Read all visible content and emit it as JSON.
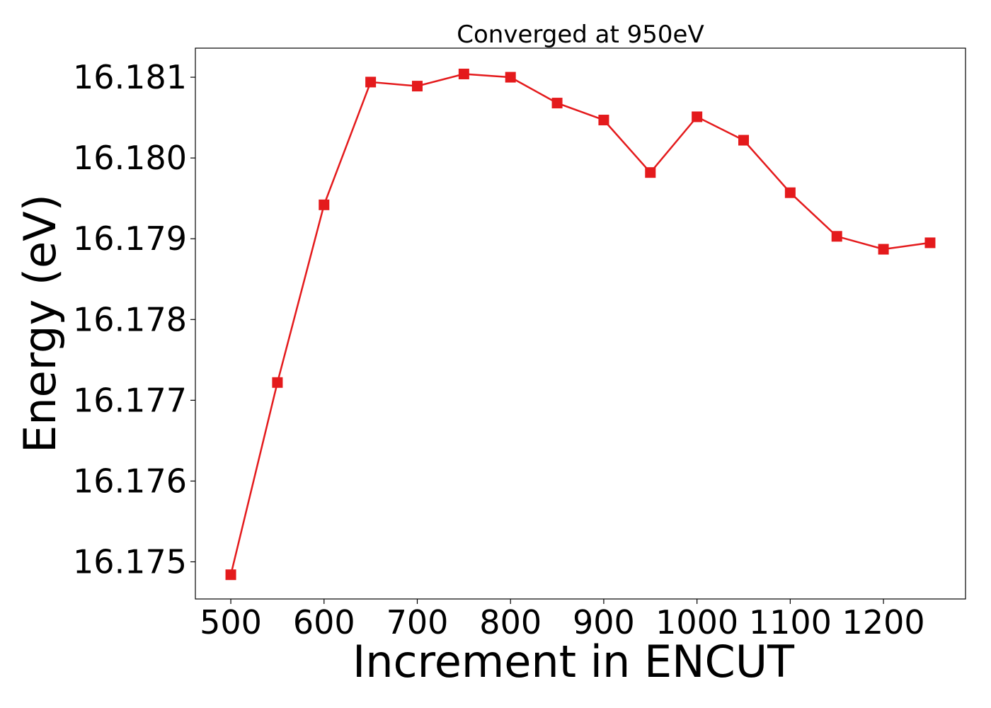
{
  "chart_data": {
    "type": "line",
    "title": "Converged at 950eV",
    "xlabel": "Increment in ENCUT",
    "ylabel": "Energy (eV)",
    "x": [
      500,
      550,
      600,
      650,
      700,
      750,
      800,
      850,
      900,
      950,
      1000,
      1050,
      1100,
      1150,
      1200,
      1250
    ],
    "series": [
      {
        "values": [
          16.17484,
          16.17722,
          16.17942,
          16.18094,
          16.18089,
          16.18104,
          16.181,
          16.18068,
          16.18047,
          16.17982,
          16.18051,
          16.18022,
          16.17957,
          16.17903,
          16.17887,
          16.17895
        ],
        "color": "#e41a1c",
        "marker": "square"
      }
    ],
    "xlim": [
      462,
      1288
    ],
    "ylim": [
      16.17454,
      16.18136
    ],
    "xticks": [
      500,
      600,
      700,
      800,
      900,
      1000,
      1100,
      1200
    ],
    "xtick_labels": [
      "500",
      "600",
      "700",
      "800",
      "900",
      "1000",
      "1100",
      "1200"
    ],
    "yticks": [
      16.175,
      16.176,
      16.177,
      16.178,
      16.179,
      16.18,
      16.181
    ],
    "ytick_labels": [
      "16.175",
      "16.176",
      "16.177",
      "16.178",
      "16.179",
      "16.180",
      "16.181"
    ],
    "grid": false,
    "legend": "none"
  }
}
